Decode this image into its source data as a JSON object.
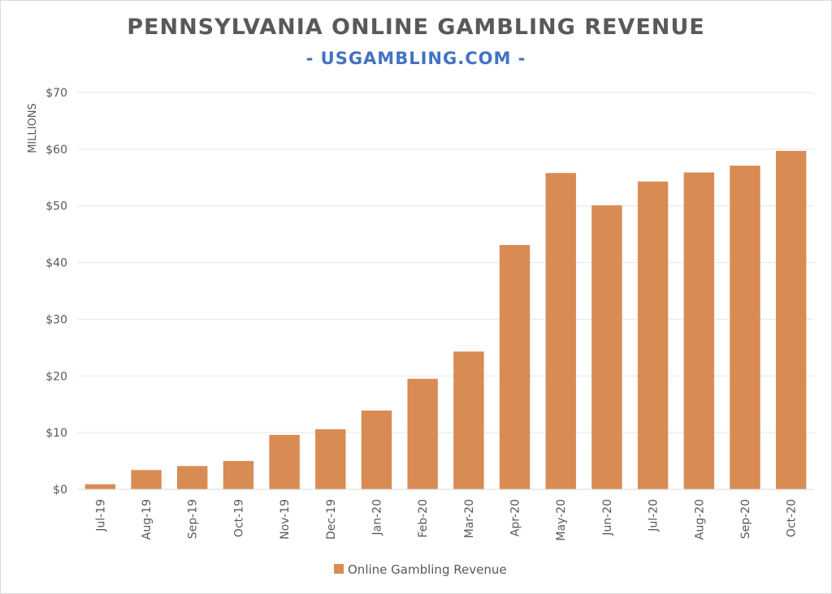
{
  "chart_data": {
    "type": "bar",
    "title": "PENNSYLVANIA ONLINE GAMBLING REVENUE",
    "subtitle": "- USGAMBLING.COM -",
    "ylabel": "MILLIONS",
    "xlabel": "",
    "ylim": [
      0,
      70
    ],
    "yticks": [
      "$0",
      "$10",
      "$20",
      "$30",
      "$40",
      "$50",
      "$60",
      "$70"
    ],
    "grid": true,
    "legend_position": "bottom",
    "categories": [
      "Jul-19",
      "Aug-19",
      "Sep-19",
      "Oct-19",
      "Nov-19",
      "Dec-19",
      "Jan-20",
      "Feb-20",
      "Mar-20",
      "Apr-20",
      "May-20",
      "Jun-20",
      "Jul-20",
      "Aug-20",
      "Sep-20",
      "Oct-20"
    ],
    "series": [
      {
        "name": "Online Gambling Revenue",
        "color": "#d98b54",
        "values": [
          0.9,
          3.4,
          4.1,
          5.0,
          9.6,
          10.6,
          13.9,
          19.5,
          24.3,
          43.1,
          55.8,
          50.1,
          54.3,
          55.9,
          57.1,
          59.7
        ]
      }
    ]
  }
}
